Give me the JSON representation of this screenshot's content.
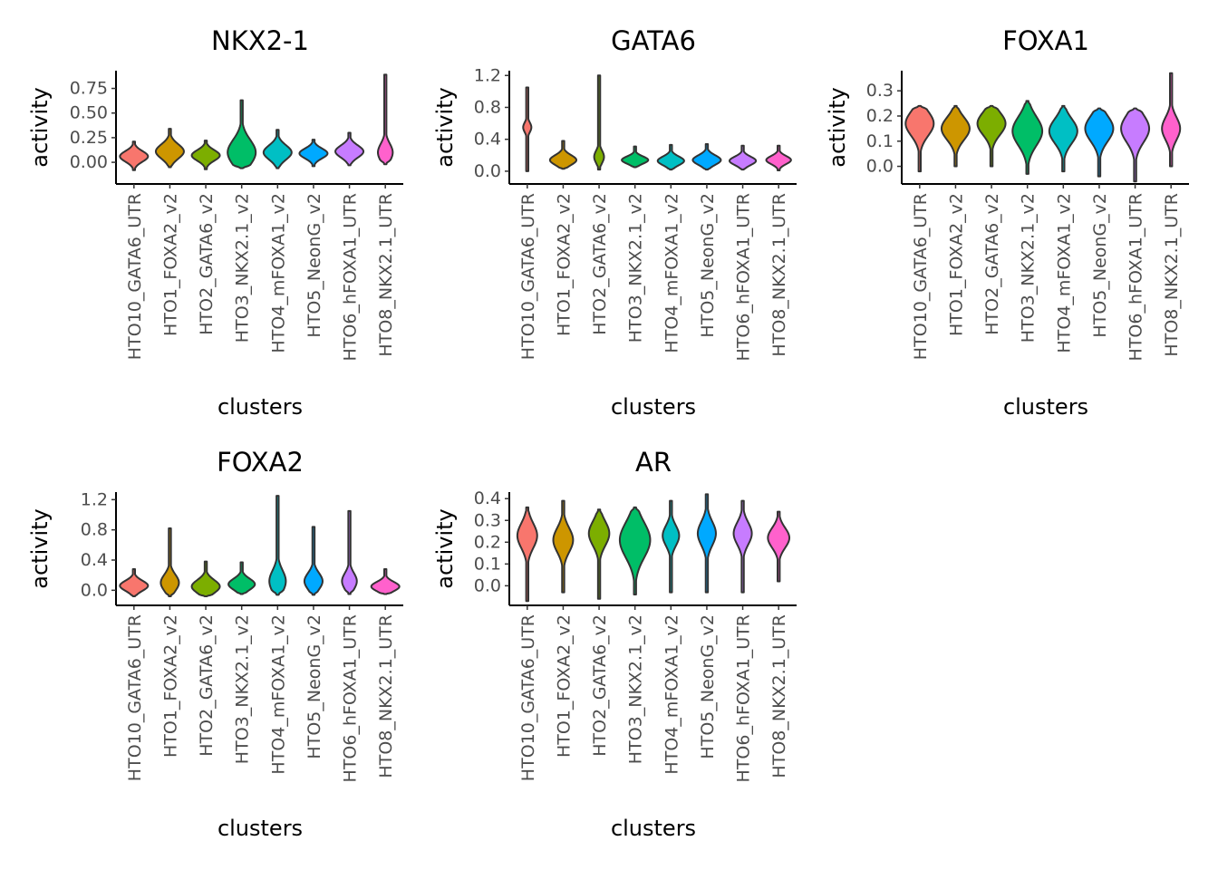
{
  "chart_data": [
    {
      "type": "violin",
      "title": "NKX2-1",
      "xlabel": "clusters",
      "ylabel": "activity",
      "yticks": [
        0,
        0.25,
        0.5,
        0.75
      ],
      "ytick_labels": [
        "0.00",
        "0.25",
        "0.50",
        "0.75"
      ],
      "ylim": [
        -0.22,
        0.93
      ],
      "categories": [
        "HTO10_GATA6_UTR",
        "HTO1_FOXA2_v2",
        "HTO2_GATA6_v2",
        "HTO3_NKX2.1_v2",
        "HTO4_mFOXA1_v2",
        "HTO5_NeonG_v2",
        "HTO6_hFOXA1_UTR",
        "HTO8_NKX2.1_UTR"
      ],
      "series": [
        {
          "min": -0.08,
          "max": 0.21,
          "mode": 0.06,
          "width": 0.85
        },
        {
          "min": -0.05,
          "max": 0.34,
          "mode": 0.11,
          "width": 0.85
        },
        {
          "min": -0.07,
          "max": 0.22,
          "mode": 0.07,
          "width": 0.85
        },
        {
          "min": -0.06,
          "max": 0.63,
          "mode": 0.1,
          "width": 0.85
        },
        {
          "min": -0.06,
          "max": 0.33,
          "mode": 0.1,
          "width": 0.85
        },
        {
          "min": -0.04,
          "max": 0.23,
          "mode": 0.09,
          "width": 0.85
        },
        {
          "min": -0.03,
          "max": 0.3,
          "mode": 0.11,
          "width": 0.85
        },
        {
          "min": -0.02,
          "max": 0.89,
          "mode": 0.1,
          "width": 0.45
        }
      ]
    },
    {
      "type": "violin",
      "title": "GATA6",
      "xlabel": "clusters",
      "ylabel": "activity",
      "yticks": [
        0,
        0.4,
        0.8,
        1.2
      ],
      "ytick_labels": [
        "0.0",
        "0.4",
        "0.8",
        "1.2"
      ],
      "ylim": [
        -0.16,
        1.26
      ],
      "categories": [
        "HTO10_GATA6_UTR",
        "HTO1_FOXA2_v2",
        "HTO2_GATA6_v2",
        "HTO3_NKX2.1_v2",
        "HTO4_mFOXA1_v2",
        "HTO5_NeonG_v2",
        "HTO6_hFOXA1_UTR",
        "HTO8_NKX2.1_UTR"
      ],
      "series": [
        {
          "min": 0.0,
          "max": 1.05,
          "mode": 0.55,
          "width": 0.25
        },
        {
          "min": 0.03,
          "max": 0.38,
          "mode": 0.14,
          "width": 0.8
        },
        {
          "min": 0.02,
          "max": 1.2,
          "mode": 0.18,
          "width": 0.3
        },
        {
          "min": 0.05,
          "max": 0.31,
          "mode": 0.14,
          "width": 0.8
        },
        {
          "min": 0.02,
          "max": 0.33,
          "mode": 0.13,
          "width": 0.8
        },
        {
          "min": 0.02,
          "max": 0.34,
          "mode": 0.14,
          "width": 0.85
        },
        {
          "min": 0.02,
          "max": 0.32,
          "mode": 0.13,
          "width": 0.8
        },
        {
          "min": 0.01,
          "max": 0.32,
          "mode": 0.14,
          "width": 0.75
        }
      ]
    },
    {
      "type": "violin",
      "title": "FOXA1",
      "xlabel": "clusters",
      "ylabel": "activity",
      "yticks": [
        0,
        0.1,
        0.2,
        0.3
      ],
      "ytick_labels": [
        "0.0",
        "0.1",
        "0.2",
        "0.3"
      ],
      "ylim": [
        -0.07,
        0.38
      ],
      "categories": [
        "HTO10_GATA6_UTR",
        "HTO1_FOXA2_v2",
        "HTO2_GATA6_v2",
        "HTO3_NKX2.1_v2",
        "HTO4_mFOXA1_v2",
        "HTO5_NeonG_v2",
        "HTO6_hFOXA1_UTR",
        "HTO8_NKX2.1_UTR"
      ],
      "series": [
        {
          "min": -0.02,
          "max": 0.24,
          "mode": 0.17,
          "width": 0.85
        },
        {
          "min": 0.0,
          "max": 0.24,
          "mode": 0.15,
          "width": 0.85
        },
        {
          "min": 0.0,
          "max": 0.24,
          "mode": 0.17,
          "width": 0.85
        },
        {
          "min": -0.03,
          "max": 0.26,
          "mode": 0.14,
          "width": 0.9
        },
        {
          "min": -0.02,
          "max": 0.24,
          "mode": 0.14,
          "width": 0.85
        },
        {
          "min": -0.04,
          "max": 0.23,
          "mode": 0.15,
          "width": 0.85
        },
        {
          "min": -0.06,
          "max": 0.23,
          "mode": 0.15,
          "width": 0.85
        },
        {
          "min": 0.0,
          "max": 0.37,
          "mode": 0.15,
          "width": 0.55
        }
      ]
    },
    {
      "type": "violin",
      "title": "FOXA2",
      "xlabel": "clusters",
      "ylabel": "activity",
      "yticks": [
        0,
        0.4,
        0.8,
        1.2
      ],
      "ytick_labels": [
        "0.0",
        "0.4",
        "0.8",
        "1.2"
      ],
      "ylim": [
        -0.2,
        1.3
      ],
      "categories": [
        "HTO10_GATA6_UTR",
        "HTO1_FOXA2_v2",
        "HTO2_GATA6_v2",
        "HTO3_NKX2.1_v2",
        "HTO4_mFOXA1_v2",
        "HTO5_NeonG_v2",
        "HTO6_hFOXA1_UTR",
        "HTO8_NKX2.1_UTR"
      ],
      "series": [
        {
          "min": -0.08,
          "max": 0.28,
          "mode": 0.06,
          "width": 0.85
        },
        {
          "min": -0.08,
          "max": 0.82,
          "mode": 0.1,
          "width": 0.55
        },
        {
          "min": -0.08,
          "max": 0.38,
          "mode": 0.05,
          "width": 0.85
        },
        {
          "min": -0.05,
          "max": 0.37,
          "mode": 0.08,
          "width": 0.8
        },
        {
          "min": -0.06,
          "max": 1.25,
          "mode": 0.12,
          "width": 0.5
        },
        {
          "min": -0.06,
          "max": 0.84,
          "mode": 0.12,
          "width": 0.55
        },
        {
          "min": -0.05,
          "max": 1.05,
          "mode": 0.12,
          "width": 0.45
        },
        {
          "min": -0.05,
          "max": 0.28,
          "mode": 0.05,
          "width": 0.85
        }
      ]
    },
    {
      "type": "violin",
      "title": "AR",
      "xlabel": "clusters",
      "ylabel": "activity",
      "yticks": [
        0,
        0.1,
        0.2,
        0.3,
        0.4
      ],
      "ytick_labels": [
        "0.0",
        "0.1",
        "0.2",
        "0.3",
        "0.4"
      ],
      "ylim": [
        -0.09,
        0.43
      ],
      "categories": [
        "HTO10_GATA6_UTR",
        "HTO1_FOXA2_v2",
        "HTO2_GATA6_v2",
        "HTO3_NKX2.1_v2",
        "HTO4_mFOXA1_v2",
        "HTO5_NeonG_v2",
        "HTO6_hFOXA1_UTR",
        "HTO8_NKX2.1_UTR"
      ],
      "series": [
        {
          "min": -0.07,
          "max": 0.36,
          "mode": 0.23,
          "width": 0.6
        },
        {
          "min": -0.03,
          "max": 0.39,
          "mode": 0.21,
          "width": 0.6
        },
        {
          "min": -0.06,
          "max": 0.35,
          "mode": 0.24,
          "width": 0.62
        },
        {
          "min": -0.04,
          "max": 0.36,
          "mode": 0.21,
          "width": 0.92
        },
        {
          "min": -0.03,
          "max": 0.39,
          "mode": 0.23,
          "width": 0.5
        },
        {
          "min": -0.03,
          "max": 0.42,
          "mode": 0.24,
          "width": 0.55
        },
        {
          "min": -0.03,
          "max": 0.39,
          "mode": 0.24,
          "width": 0.55
        },
        {
          "min": 0.02,
          "max": 0.34,
          "mode": 0.22,
          "width": 0.65
        }
      ]
    }
  ],
  "colors": [
    "#F8766D",
    "#CD9600",
    "#7CAE00",
    "#00BE67",
    "#00BFC4",
    "#00A9FF",
    "#C77CFF",
    "#FF61CC"
  ],
  "outline_color": "#333333",
  "axis_color": "#000000"
}
